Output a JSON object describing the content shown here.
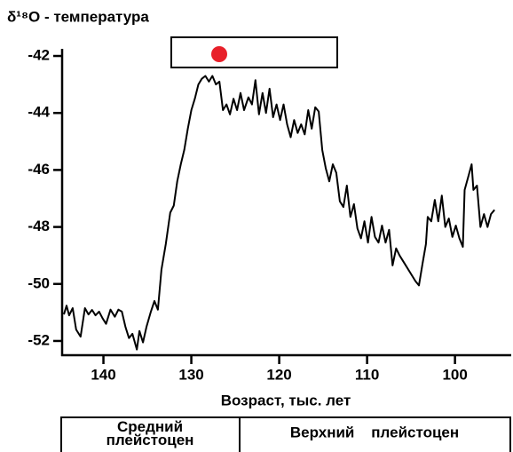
{
  "chart_data": {
    "type": "line",
    "title": "δ¹⁸O - температура",
    "xlabel": "Возраст, тыс. лет",
    "xlim": [
      144.7,
      93.6
    ],
    "xticks": [
      140,
      130,
      120,
      110,
      100
    ],
    "ylim": [
      -52.5,
      -41.75
    ],
    "yticks": [
      -42,
      -44,
      -46,
      -48,
      -50,
      -52
    ],
    "color": "#000000",
    "x": [
      144.5,
      144.2,
      143.9,
      143.5,
      143.1,
      142.6,
      142.1,
      141.7,
      141.3,
      140.9,
      140.5,
      140.1,
      139.7,
      139.2,
      138.7,
      138.3,
      137.9,
      137.5,
      137.1,
      136.7,
      136.2,
      135.9,
      135.5,
      135.1,
      134.6,
      134.2,
      133.8,
      133.4,
      132.9,
      132.4,
      132.0,
      131.6,
      131.2,
      130.8,
      130.4,
      130.0,
      129.6,
      129.2,
      128.8,
      128.4,
      128.0,
      127.6,
      127.2,
      126.8,
      126.4,
      126.0,
      125.6,
      125.2,
      124.8,
      124.4,
      124.0,
      123.5,
      123.1,
      122.7,
      122.3,
      121.9,
      121.5,
      121.1,
      120.7,
      120.3,
      119.9,
      119.5,
      119.1,
      118.7,
      118.3,
      117.9,
      117.5,
      117.1,
      116.7,
      116.3,
      115.9,
      115.5,
      115.1,
      114.7,
      114.3,
      113.9,
      113.5,
      113.1,
      112.7,
      112.3,
      111.9,
      111.5,
      111.1,
      110.7,
      110.3,
      109.9,
      109.5,
      109.1,
      108.7,
      108.3,
      107.9,
      107.5,
      107.1,
      106.7,
      106.3,
      105.7,
      105.1,
      104.5,
      104.1,
      103.7,
      103.3,
      103.1,
      102.7,
      102.3,
      101.9,
      101.5,
      101.1,
      100.7,
      100.3,
      99.9,
      99.5,
      99.1,
      98.9,
      98.5,
      98.1,
      97.9,
      97.5,
      97.1,
      96.7,
      96.3,
      95.9,
      95.5
    ],
    "values": [
      -51.07,
      -50.76,
      -51.1,
      -50.85,
      -51.6,
      -51.85,
      -50.85,
      -51.07,
      -50.91,
      -51.1,
      -50.97,
      -51.2,
      -51.4,
      -50.9,
      -51.15,
      -50.9,
      -50.97,
      -51.5,
      -51.9,
      -51.75,
      -52.3,
      -51.65,
      -52.05,
      -51.5,
      -50.97,
      -50.6,
      -50.9,
      -49.5,
      -48.6,
      -47.5,
      -47.25,
      -46.4,
      -45.8,
      -45.3,
      -44.55,
      -43.9,
      -43.5,
      -43.0,
      -42.8,
      -42.7,
      -42.9,
      -42.7,
      -43.0,
      -42.9,
      -43.9,
      -43.7,
      -44.05,
      -43.5,
      -43.9,
      -43.3,
      -43.9,
      -43.45,
      -43.7,
      -42.85,
      -44.05,
      -43.3,
      -44.0,
      -43.15,
      -44.15,
      -43.7,
      -44.25,
      -43.7,
      -44.4,
      -44.85,
      -44.25,
      -44.7,
      -44.4,
      -44.75,
      -43.9,
      -44.55,
      -43.8,
      -43.95,
      -45.3,
      -45.95,
      -46.4,
      -45.8,
      -46.1,
      -47.1,
      -47.3,
      -46.55,
      -47.65,
      -47.2,
      -48.05,
      -48.4,
      -47.8,
      -48.55,
      -47.65,
      -48.35,
      -48.55,
      -47.95,
      -48.55,
      -48.1,
      -49.35,
      -48.75,
      -49.0,
      -49.3,
      -49.6,
      -49.9,
      -50.05,
      -49.3,
      -48.6,
      -47.65,
      -47.8,
      -47.05,
      -47.8,
      -46.9,
      -48.0,
      -47.7,
      -48.35,
      -47.95,
      -48.4,
      -48.7,
      -46.7,
      -46.25,
      -45.8,
      -46.7,
      -46.55,
      -48.0,
      -47.55,
      -48.0,
      -47.55,
      -47.4
    ],
    "stages": [
      "Средний плейстоцен",
      "Верхний    плейстоцен"
    ]
  }
}
